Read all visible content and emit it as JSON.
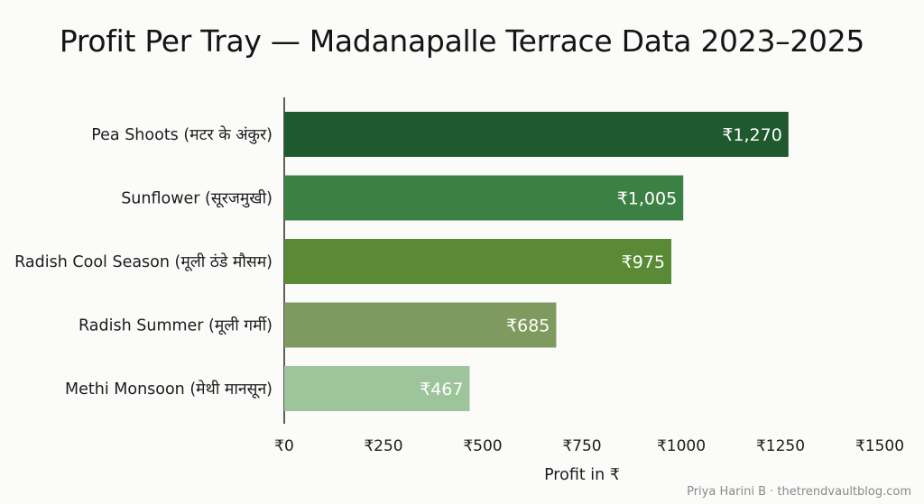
{
  "chart_data": {
    "type": "bar",
    "orientation": "horizontal",
    "title": "Profit Per Tray — Madanapalle Terrace Data 2023–2025",
    "categories": [
      "Pea Shoots (मटर के अंकुर)",
      "Sunflower (सूरजमुखी)",
      "Radish Cool Season (मूली ठंडे मौसम)",
      "Radish Summer (मूली गर्मी)",
      "Methi Monsoon (मेथी मानसून)"
    ],
    "values": [
      1270,
      1005,
      975,
      685,
      467
    ],
    "value_labels": [
      "₹1,270",
      "₹1,005",
      "₹975",
      "₹685",
      "₹467"
    ],
    "colors": [
      "#1e5a2d",
      "#3b8143",
      "#5a8a36",
      "#7f9a5e",
      "#9dc49a"
    ],
    "xlabel": "Profit in ₹",
    "ylabel": "",
    "xlim": [
      0,
      1500
    ],
    "xticks": [
      0,
      250,
      500,
      750,
      1000,
      1250,
      1500
    ],
    "xtick_labels": [
      "₹0",
      "₹250",
      "₹500",
      "₹750",
      "₹1000",
      "₹1250",
      "₹1500"
    ],
    "grid": false,
    "legend": "none"
  },
  "credit": "Priya Harini B · thetrendvaultblog.com"
}
